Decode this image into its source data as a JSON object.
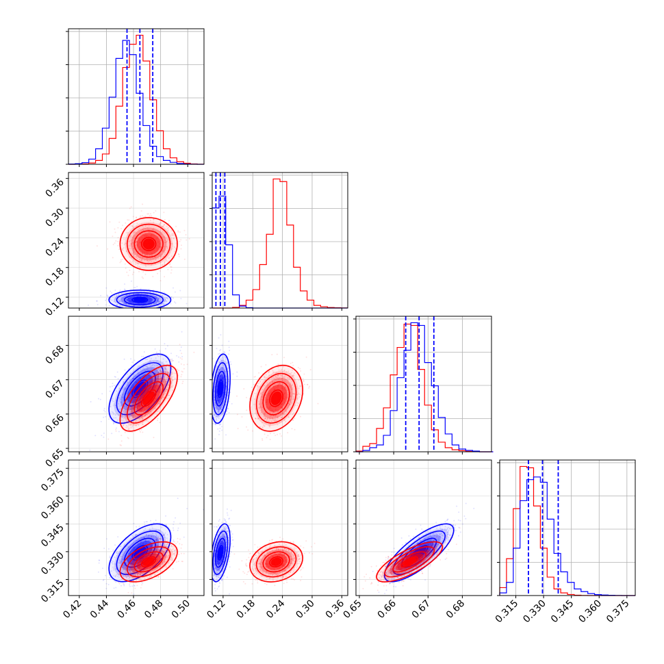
{
  "chart_data": {
    "type": "corner",
    "description_note": "",
    "series": [
      {
        "name": "",
        "color": "#0000ff"
      },
      {
        "name": "",
        "color": "#ff0000"
      }
    ],
    "quantile_line_color": "#0000ff",
    "quantile_line_style": "dashed",
    "grid": true,
    "params": [
      {
        "id": "p0",
        "range": [
          0.412,
          0.512
        ],
        "ticks": [
          0.42,
          0.44,
          0.46,
          0.48,
          0.5
        ],
        "tick_labels": [
          "0.42",
          "0.44",
          "0.46",
          "0.48",
          "0.50"
        ]
      },
      {
        "id": "p1",
        "range": [
          0.098,
          0.372
        ],
        "ticks": [
          0.12,
          0.18,
          0.24,
          0.3,
          0.36
        ],
        "tick_labels": [
          "0.12",
          "0.18",
          "0.24",
          "0.30",
          "0.36"
        ]
      },
      {
        "id": "p2",
        "range": [
          0.649,
          0.6885
        ],
        "ticks": [
          0.65,
          0.66,
          0.67,
          0.68
        ],
        "tick_labels": [
          "0.65",
          "0.66",
          "0.67",
          "0.68"
        ]
      },
      {
        "id": "p3",
        "range": [
          0.3063,
          0.3795
        ],
        "ticks": [
          0.315,
          0.33,
          0.345,
          0.36,
          0.375
        ],
        "tick_labels": [
          "0.315",
          "0.330",
          "0.345",
          "0.360",
          "0.375"
        ]
      }
    ],
    "marginals": [
      {
        "param": 0,
        "quantiles_blue": [
          0.4552,
          0.4647,
          0.4742
        ],
        "bins": [
          0.412,
          0.417,
          0.422,
          0.427,
          0.432,
          0.437,
          0.442,
          0.447,
          0.452,
          0.457,
          0.462,
          0.467,
          0.472,
          0.477,
          0.482,
          0.487,
          0.492,
          0.497,
          0.502,
          0.507,
          0.512
        ],
        "blue": [
          0.002,
          0.005,
          0.013,
          0.04,
          0.12,
          0.28,
          0.52,
          0.82,
          0.96,
          0.85,
          0.55,
          0.3,
          0.14,
          0.06,
          0.03,
          0.015,
          0.006,
          0.002,
          0.001,
          0.0
        ],
        "red": [
          0.0,
          0.001,
          0.003,
          0.01,
          0.03,
          0.08,
          0.2,
          0.45,
          0.75,
          0.93,
          1.0,
          0.8,
          0.5,
          0.26,
          0.12,
          0.05,
          0.02,
          0.008,
          0.003,
          0.001
        ]
      },
      {
        "param": 1,
        "quantiles_blue": [
          0.1055,
          0.1145,
          0.1235
        ],
        "bins": [
          0.098,
          0.1117,
          0.1254,
          0.1391,
          0.1528,
          0.1665,
          0.1802,
          0.1939,
          0.2076,
          0.2213,
          0.235,
          0.2487,
          0.2624,
          0.2761,
          0.2898,
          0.3035,
          0.3172,
          0.3309,
          0.3446,
          0.3583,
          0.372
        ],
        "blue": [
          0.76,
          0.85,
          0.48,
          0.1,
          0.015,
          0.003,
          0.0,
          0.0,
          0.0,
          0.0,
          0.0,
          0.0,
          0.0,
          0.0,
          0.0,
          0.0,
          0.0,
          0.0,
          0.0,
          0.0
        ],
        "red": [
          0.0,
          0.0,
          0.0,
          0.005,
          0.02,
          0.06,
          0.14,
          0.33,
          0.56,
          0.98,
          0.96,
          0.63,
          0.31,
          0.13,
          0.06,
          0.02,
          0.01,
          0.004,
          0.002,
          0.001
        ]
      },
      {
        "param": 2,
        "quantiles_blue": [
          0.6635,
          0.6674,
          0.6717
        ],
        "bins": [
          0.649,
          0.651,
          0.653,
          0.655,
          0.657,
          0.659,
          0.661,
          0.663,
          0.665,
          0.667,
          0.669,
          0.671,
          0.673,
          0.675,
          0.677,
          0.679,
          0.681,
          0.683,
          0.685,
          0.687,
          0.689
        ],
        "blue": [
          0.0,
          0.01,
          0.03,
          0.05,
          0.12,
          0.3,
          0.54,
          0.74,
          0.94,
          0.92,
          0.65,
          0.48,
          0.25,
          0.13,
          0.05,
          0.02,
          0.01,
          0.005,
          0.0,
          0.0
        ],
        "red": [
          0.005,
          0.04,
          0.06,
          0.17,
          0.32,
          0.56,
          0.76,
          0.93,
          0.92,
          0.6,
          0.34,
          0.16,
          0.07,
          0.03,
          0.015,
          0.008,
          0.003,
          0.002,
          0.0,
          0.0
        ]
      },
      {
        "param": 3,
        "quantiles_blue": [
          0.3218,
          0.3294,
          0.3379
        ],
        "bins": [
          0.3063,
          0.30996,
          0.31362,
          0.31728,
          0.32094,
          0.3246,
          0.32826,
          0.33192,
          0.33558,
          0.33924,
          0.3429,
          0.34656,
          0.35022,
          0.35388,
          0.35754,
          0.3612,
          0.36486,
          0.36852,
          0.37218,
          0.37584,
          0.3795
        ],
        "blue": [
          0.02,
          0.1,
          0.36,
          0.72,
          0.88,
          0.9,
          0.86,
          0.58,
          0.32,
          0.18,
          0.1,
          0.05,
          0.03,
          0.015,
          0.007,
          0.004,
          0.002,
          0.001,
          0.0,
          0.0
        ],
        "red": [
          0.06,
          0.28,
          0.66,
          0.98,
          0.97,
          0.68,
          0.36,
          0.14,
          0.05,
          0.02,
          0.008,
          0.003,
          0.001,
          0.0,
          0.0,
          0.0,
          0.0,
          0.0,
          0.0,
          0.0
        ]
      }
    ],
    "joint": [
      {
        "x": 0,
        "y": 1,
        "blue": {
          "mean": [
            0.4647,
            0.1145
          ],
          "sd": [
            0.0095,
            0.0082
          ],
          "rho": 0.0
        },
        "red": {
          "mean": [
            0.4712,
            0.2275
          ],
          "sd": [
            0.0088,
            0.0222
          ],
          "rho": 0.0
        }
      },
      {
        "x": 0,
        "y": 2,
        "blue": {
          "mean": [
            0.4647,
            0.6674
          ],
          "sd": [
            0.0095,
            0.0042
          ],
          "rho": 0.6
        },
        "red": {
          "mean": [
            0.4712,
            0.6646
          ],
          "sd": [
            0.0088,
            0.004
          ],
          "rho": 0.65
        }
      },
      {
        "x": 0,
        "y": 3,
        "blue": {
          "mean": [
            0.4647,
            0.3294
          ],
          "sd": [
            0.0095,
            0.0065
          ],
          "rho": 0.55
        },
        "red": {
          "mean": [
            0.4712,
            0.3245
          ],
          "sd": [
            0.0088,
            0.0045
          ],
          "rho": 0.5
        }
      },
      {
        "x": 1,
        "y": 2,
        "blue": {
          "mean": [
            0.1145,
            0.6674
          ],
          "sd": [
            0.0082,
            0.0042
          ],
          "rho": 0.3
        },
        "red": {
          "mean": [
            0.2275,
            0.6646
          ],
          "sd": [
            0.0222,
            0.004
          ],
          "rho": 0.25
        }
      },
      {
        "x": 1,
        "y": 3,
        "blue": {
          "mean": [
            0.1145,
            0.3294
          ],
          "sd": [
            0.0082,
            0.0065
          ],
          "rho": 0.45
        },
        "red": {
          "mean": [
            0.2275,
            0.3245
          ],
          "sd": [
            0.0222,
            0.0045
          ],
          "rho": 0.2
        }
      },
      {
        "x": 2,
        "y": 3,
        "blue": {
          "mean": [
            0.6674,
            0.3294
          ],
          "sd": [
            0.0042,
            0.0065
          ],
          "rho": 0.78
        },
        "red": {
          "mean": [
            0.6646,
            0.3245
          ],
          "sd": [
            0.004,
            0.0045
          ],
          "rho": 0.75
        }
      }
    ]
  }
}
